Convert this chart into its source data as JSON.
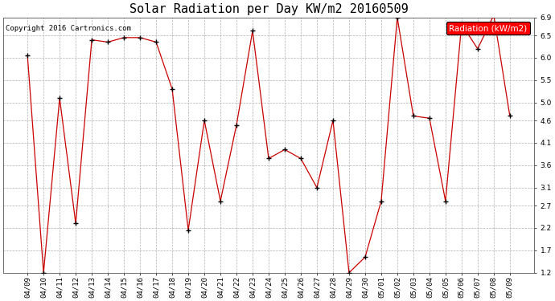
{
  "title": "Solar Radiation per Day KW/m2 20160509",
  "copyright_text": "Copyright 2016 Cartronics.com",
  "legend_label": "Radiation (kW/m2)",
  "dates": [
    "04/09",
    "04/10",
    "04/11",
    "04/12",
    "04/13",
    "04/14",
    "04/15",
    "04/16",
    "04/17",
    "04/18",
    "04/19",
    "04/20",
    "04/21",
    "04/22",
    "04/23",
    "04/24",
    "04/25",
    "04/26",
    "04/27",
    "04/28",
    "04/29",
    "04/30",
    "05/01",
    "05/02",
    "05/03",
    "05/04",
    "05/05",
    "05/06",
    "05/07",
    "05/08",
    "05/09"
  ],
  "values": [
    6.05,
    1.2,
    5.1,
    2.3,
    6.4,
    6.35,
    6.45,
    6.45,
    6.35,
    5.3,
    2.15,
    4.6,
    2.8,
    4.5,
    6.6,
    3.75,
    3.95,
    3.75,
    3.1,
    4.6,
    1.2,
    1.55,
    2.8,
    6.9,
    4.7,
    4.65,
    2.8,
    6.75,
    6.2,
    6.95,
    4.7
  ],
  "line_color": "#cc0000",
  "marker_color": "#000000",
  "bg_color": "#ffffff",
  "plot_bg_color": "#ffffff",
  "grid_color": "#b0b0b0",
  "ylim": [
    1.2,
    6.9
  ],
  "yticks": [
    1.2,
    1.7,
    2.2,
    2.7,
    3.1,
    3.6,
    4.1,
    4.6,
    5.0,
    5.5,
    6.0,
    6.5,
    6.9
  ],
  "title_fontsize": 11,
  "tick_fontsize": 6.5,
  "legend_fontsize": 7.5,
  "copyright_fontsize": 6.5
}
